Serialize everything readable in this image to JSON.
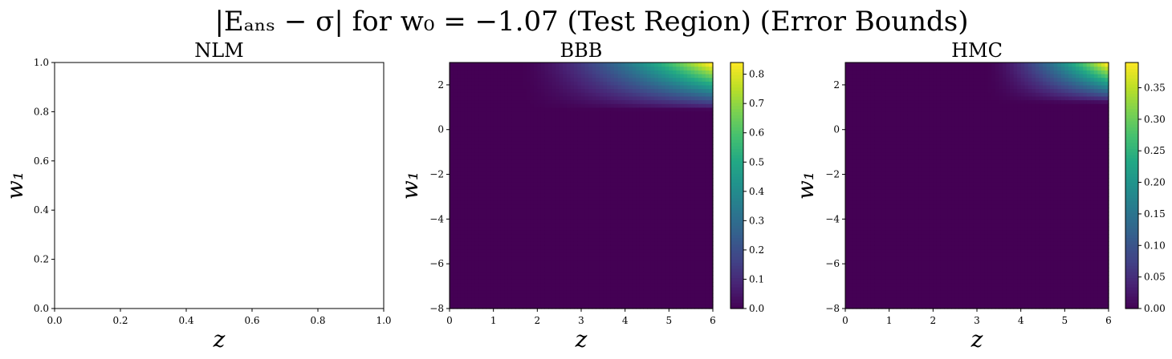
{
  "chart_data": {
    "suptitle": "|Eₐₙₛ − σ| for w₀ = −1.07 (Test Region) (Error Bounds)",
    "type": "heatmap",
    "panels": [
      {
        "id": "nlm",
        "title": "NLM",
        "xlabel": "z",
        "ylabel": "w₁",
        "xlim": [
          0,
          1
        ],
        "ylim": [
          0,
          1
        ],
        "xticks": [
          0.0,
          0.2,
          0.4,
          0.6,
          0.8,
          1.0
        ],
        "yticks": [
          0.0,
          0.2,
          0.4,
          0.6,
          0.8,
          1.0
        ],
        "xtick_labels": [
          "0.0",
          "0.2",
          "0.4",
          "0.6",
          "0.8",
          "1.0"
        ],
        "ytick_labels": [
          "0.0",
          "0.2",
          "0.4",
          "0.6",
          "0.8",
          "1.0"
        ],
        "empty": true
      },
      {
        "id": "bbb",
        "title": "BBB",
        "xlabel": "z",
        "ylabel": "w₁",
        "xlim": [
          0,
          6
        ],
        "ylim": [
          -8,
          3
        ],
        "xticks": [
          0,
          1,
          2,
          3,
          4,
          5,
          6
        ],
        "yticks": [
          -8,
          -6,
          -4,
          -2,
          0,
          2
        ],
        "xtick_labels": [
          "0",
          "1",
          "2",
          "3",
          "4",
          "5",
          "6"
        ],
        "ytick_labels": [
          "−8",
          "−6",
          "−4",
          "−2",
          "0",
          "2"
        ],
        "colormap": "viridis",
        "vmin": 0,
        "vmax": 0.84,
        "colorbar_ticks": [
          0.0,
          0.1,
          0.2,
          0.3,
          0.4,
          0.5,
          0.6,
          0.7,
          0.8
        ],
        "colorbar_tick_labels": [
          "0.0",
          "0.1",
          "0.2",
          "0.3",
          "0.4",
          "0.5",
          "0.6",
          "0.7",
          "0.8"
        ],
        "field": {
          "peak_z": 6,
          "peak_w1": 3,
          "max_value": 0.84,
          "z_onset": 1.6,
          "w1_onset": 0.9
        }
      },
      {
        "id": "hmc",
        "title": "HMC",
        "xlabel": "z",
        "ylabel": "w₁",
        "xlim": [
          0,
          6
        ],
        "ylim": [
          -8,
          3
        ],
        "xticks": [
          0,
          1,
          2,
          3,
          4,
          5,
          6
        ],
        "yticks": [
          -8,
          -6,
          -4,
          -2,
          0,
          2
        ],
        "xtick_labels": [
          "0",
          "1",
          "2",
          "3",
          "4",
          "5",
          "6"
        ],
        "ytick_labels": [
          "−8",
          "−6",
          "−4",
          "−2",
          "0",
          "2"
        ],
        "colormap": "viridis",
        "vmin": 0,
        "vmax": 0.39,
        "colorbar_ticks": [
          0.0,
          0.05,
          0.1,
          0.15,
          0.2,
          0.25,
          0.3,
          0.35
        ],
        "colorbar_tick_labels": [
          "0.00",
          "0.05",
          "0.10",
          "0.15",
          "0.20",
          "0.25",
          "0.30",
          "0.35"
        ],
        "field": {
          "peak_z": 6,
          "peak_w1": 3,
          "max_value": 0.39,
          "z_onset": 3.2,
          "w1_onset": 1.2
        }
      }
    ]
  }
}
